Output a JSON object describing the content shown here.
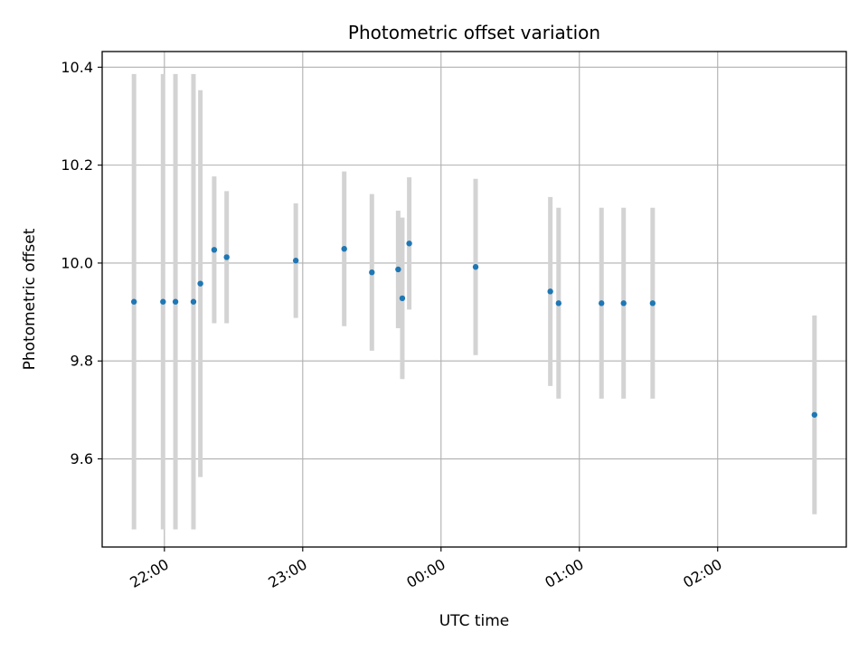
{
  "chart_data": {
    "type": "scatter",
    "title": "Photometric offset variation",
    "xlabel": "UTC time",
    "ylabel": "Photometric offset",
    "x_unit": "hours since 00:00 UTC",
    "xlim": [
      -2.45,
      2.93
    ],
    "ylim": [
      9.42,
      10.432
    ],
    "x_ticks": [
      {
        "value": -2.0,
        "label": "22:00"
      },
      {
        "value": -1.0,
        "label": "23:00"
      },
      {
        "value": 0.0,
        "label": "00:00"
      },
      {
        "value": 1.0,
        "label": "01:00"
      },
      {
        "value": 2.0,
        "label": "02:00"
      }
    ],
    "y_ticks": [
      {
        "value": 9.6,
        "label": "9.6"
      },
      {
        "value": 9.8,
        "label": "9.8"
      },
      {
        "value": 10.0,
        "label": "10.0"
      },
      {
        "value": 10.2,
        "label": "10.2"
      },
      {
        "value": 10.4,
        "label": "10.4"
      }
    ],
    "grid": true,
    "marker_color": "#1f77b4",
    "errorbar_color": "#d3d3d3",
    "points": [
      {
        "x": -2.22,
        "y": 9.921,
        "err": 0.465
      },
      {
        "x": -2.01,
        "y": 9.921,
        "err": 0.465
      },
      {
        "x": -1.92,
        "y": 9.921,
        "err": 0.465
      },
      {
        "x": -1.79,
        "y": 9.921,
        "err": 0.465
      },
      {
        "x": -1.74,
        "y": 9.958,
        "err": 0.395
      },
      {
        "x": -1.64,
        "y": 10.027,
        "err": 0.15
      },
      {
        "x": -1.55,
        "y": 10.012,
        "err": 0.135
      },
      {
        "x": -1.05,
        "y": 10.005,
        "err": 0.117
      },
      {
        "x": -0.7,
        "y": 10.029,
        "err": 0.158
      },
      {
        "x": -0.5,
        "y": 9.981,
        "err": 0.16
      },
      {
        "x": -0.31,
        "y": 9.987,
        "err": 0.12
      },
      {
        "x": -0.28,
        "y": 9.928,
        "err": 0.165
      },
      {
        "x": -0.23,
        "y": 10.04,
        "err": 0.135
      },
      {
        "x": 0.25,
        "y": 9.992,
        "err": 0.18
      },
      {
        "x": 0.79,
        "y": 9.942,
        "err": 0.193
      },
      {
        "x": 0.85,
        "y": 9.918,
        "err": 0.195
      },
      {
        "x": 1.16,
        "y": 9.918,
        "err": 0.195
      },
      {
        "x": 1.32,
        "y": 9.918,
        "err": 0.195
      },
      {
        "x": 1.53,
        "y": 9.918,
        "err": 0.195
      },
      {
        "x": 2.7,
        "y": 9.69,
        "err": 0.203
      }
    ]
  }
}
